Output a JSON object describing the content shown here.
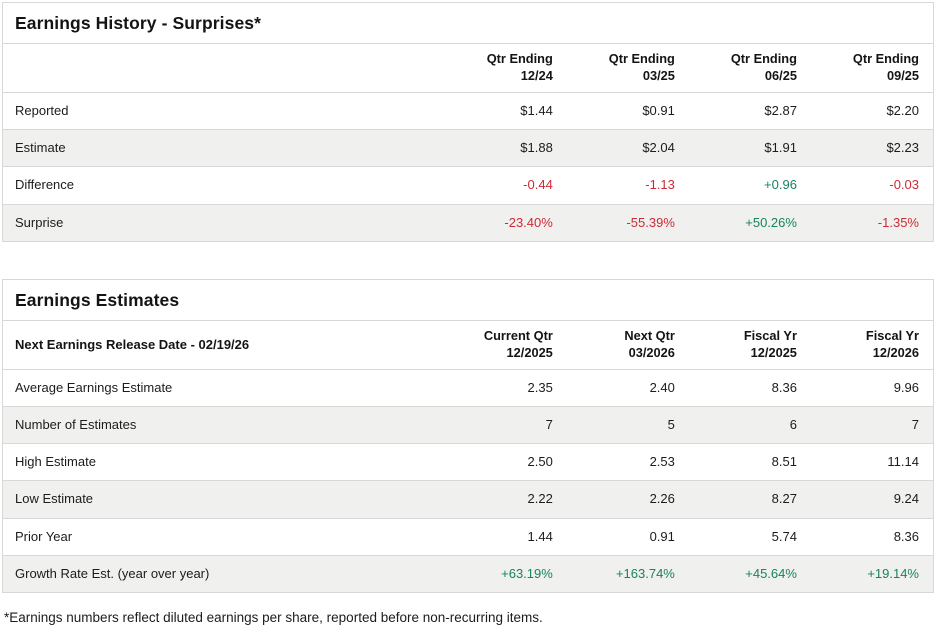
{
  "colors": {
    "positive_value": "#17855c",
    "negative_value": "#cc2b36",
    "row_stripe": "#f0f0ee",
    "border": "#d8d8d8"
  },
  "earnings_history": {
    "title": "Earnings History - Surprises*",
    "columns": [
      {
        "line1": "Qtr Ending",
        "line2": "12/24"
      },
      {
        "line1": "Qtr Ending",
        "line2": "03/25"
      },
      {
        "line1": "Qtr Ending",
        "line2": "06/25"
      },
      {
        "line1": "Qtr Ending",
        "line2": "09/25"
      }
    ],
    "rows": [
      {
        "label": "Reported",
        "values": [
          "$1.44",
          "$0.91",
          "$2.87",
          "$2.20"
        ],
        "tones": [
          "normal",
          "normal",
          "normal",
          "normal"
        ]
      },
      {
        "label": "Estimate",
        "values": [
          "$1.88",
          "$2.04",
          "$1.91",
          "$2.23"
        ],
        "tones": [
          "normal",
          "normal",
          "normal",
          "normal"
        ]
      },
      {
        "label": "Difference",
        "values": [
          "-0.44",
          "-1.13",
          "+0.96",
          "-0.03"
        ],
        "tones": [
          "neg",
          "neg",
          "pos",
          "neg"
        ]
      },
      {
        "label": "Surprise",
        "values": [
          "-23.40%",
          "-55.39%",
          "+50.26%",
          "-1.35%"
        ],
        "tones": [
          "neg",
          "neg",
          "pos",
          "neg"
        ]
      }
    ]
  },
  "earnings_estimates": {
    "title": "Earnings Estimates",
    "header_label": "Next Earnings Release Date - 02/19/26",
    "columns": [
      {
        "line1": "Current Qtr",
        "line2": "12/2025"
      },
      {
        "line1": "Next Qtr",
        "line2": "03/2026"
      },
      {
        "line1": "Fiscal Yr",
        "line2": "12/2025"
      },
      {
        "line1": "Fiscal Yr",
        "line2": "12/2026"
      }
    ],
    "rows": [
      {
        "label": "Average Earnings Estimate",
        "values": [
          "2.35",
          "2.40",
          "8.36",
          "9.96"
        ],
        "tones": [
          "normal",
          "normal",
          "normal",
          "normal"
        ]
      },
      {
        "label": "Number of Estimates",
        "values": [
          "7",
          "5",
          "6",
          "7"
        ],
        "tones": [
          "normal",
          "normal",
          "normal",
          "normal"
        ]
      },
      {
        "label": "High Estimate",
        "values": [
          "2.50",
          "2.53",
          "8.51",
          "11.14"
        ],
        "tones": [
          "normal",
          "normal",
          "normal",
          "normal"
        ]
      },
      {
        "label": "Low Estimate",
        "values": [
          "2.22",
          "2.26",
          "8.27",
          "9.24"
        ],
        "tones": [
          "normal",
          "normal",
          "normal",
          "normal"
        ]
      },
      {
        "label": "Prior Year",
        "values": [
          "1.44",
          "0.91",
          "5.74",
          "8.36"
        ],
        "tones": [
          "normal",
          "normal",
          "normal",
          "normal"
        ]
      },
      {
        "label": "Growth Rate Est. (year over year)",
        "values": [
          "+63.19%",
          "+163.74%",
          "+45.64%",
          "+19.14%"
        ],
        "tones": [
          "pos",
          "pos",
          "pos",
          "pos"
        ]
      }
    ]
  },
  "footnote": "*Earnings numbers reflect diluted earnings per share, reported before non-recurring items."
}
